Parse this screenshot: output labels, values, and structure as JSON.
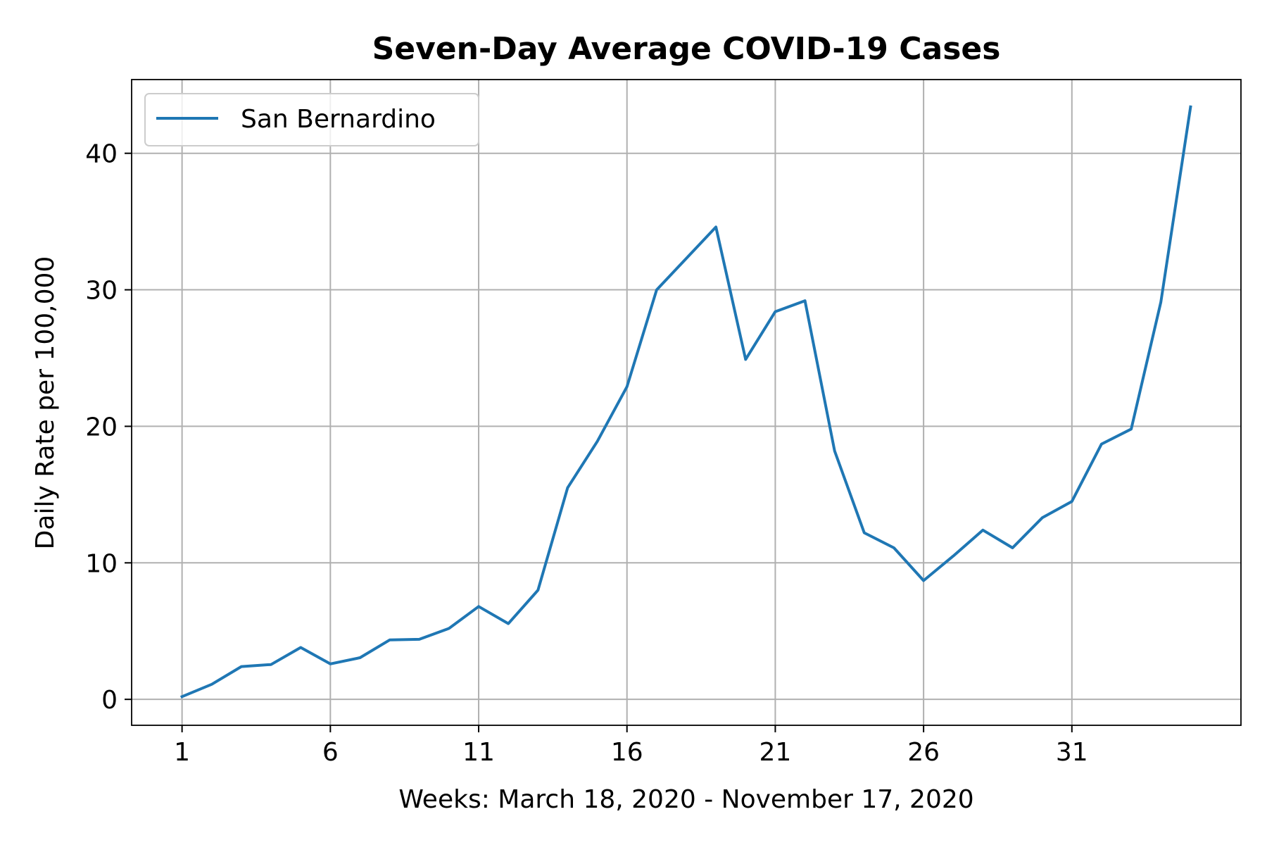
{
  "chart_data": {
    "type": "line",
    "title": "Seven-Day Average COVID-19 Cases",
    "xlabel": "Weeks: March 18, 2020 - November 17, 2020",
    "ylabel": "Daily Rate per 100,000",
    "xlim": [
      -0.7,
      36.7
    ],
    "ylim": [
      -1.9,
      45.4
    ],
    "x_ticks": [
      1,
      6,
      11,
      16,
      21,
      26,
      31
    ],
    "y_ticks": [
      0,
      10,
      20,
      30,
      40
    ],
    "grid": true,
    "legend_position": "top-left",
    "colors": {
      "series": "#1f77b4",
      "grid": "#b0b0b0",
      "axes": "#000000"
    },
    "series": [
      {
        "name": "San Bernardino",
        "x": [
          1,
          2,
          3,
          4,
          5,
          6,
          7,
          8,
          9,
          10,
          11,
          12,
          13,
          14,
          15,
          16,
          17,
          18,
          19,
          20,
          21,
          22,
          23,
          24,
          25,
          26,
          27,
          28,
          29,
          30,
          31,
          32,
          33,
          34,
          35
        ],
        "y": [
          0.2,
          1.1,
          2.4,
          2.55,
          3.8,
          2.6,
          3.05,
          4.35,
          4.4,
          5.2,
          6.8,
          5.55,
          8.0,
          15.5,
          18.9,
          22.9,
          30.0,
          32.3,
          34.6,
          24.9,
          28.4,
          29.2,
          18.2,
          12.2,
          11.1,
          8.7,
          10.5,
          12.4,
          11.1,
          13.3,
          14.5,
          18.7,
          19.8,
          29.1,
          43.4
        ]
      }
    ]
  }
}
